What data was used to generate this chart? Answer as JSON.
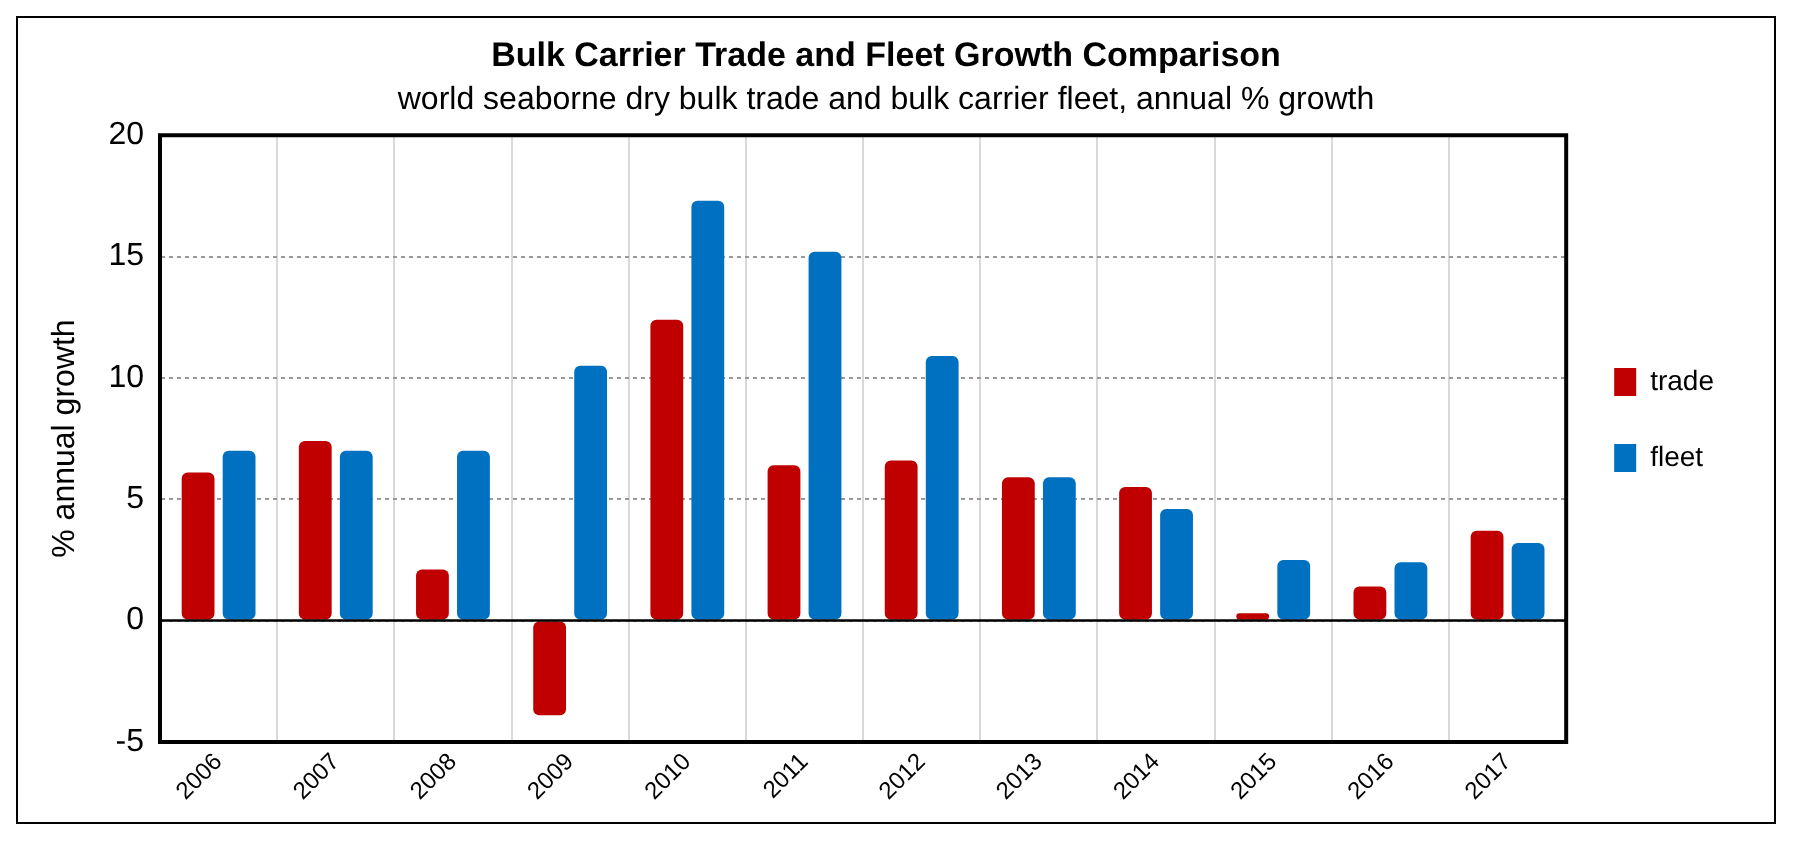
{
  "chart_data": {
    "type": "bar",
    "title": "Bulk Carrier Trade and Fleet Growth Comparison",
    "subtitle": "world seaborne dry bulk trade and bulk carrier fleet, annual % growth",
    "ylabel": "% annual growth",
    "categories": [
      "2006",
      "2007",
      "2008",
      "2009",
      "2010",
      "2011",
      "2012",
      "2013",
      "2014",
      "2015",
      "2016",
      "2017"
    ],
    "series": [
      {
        "name": "trade",
        "color": "#c00000",
        "values": [
          6.1,
          7.4,
          2.1,
          -3.9,
          12.4,
          6.4,
          6.6,
          5.9,
          5.5,
          0.3,
          1.4,
          3.7
        ]
      },
      {
        "name": "fleet",
        "color": "#0070c0",
        "values": [
          7.0,
          7.0,
          7.0,
          10.5,
          17.3,
          15.2,
          10.9,
          5.9,
          4.6,
          2.5,
          2.4,
          3.2
        ]
      }
    ],
    "ylim": [
      -5,
      20
    ],
    "yticks": [
      -5,
      0,
      5,
      10,
      15,
      20
    ],
    "grid": true,
    "legend": "right"
  }
}
